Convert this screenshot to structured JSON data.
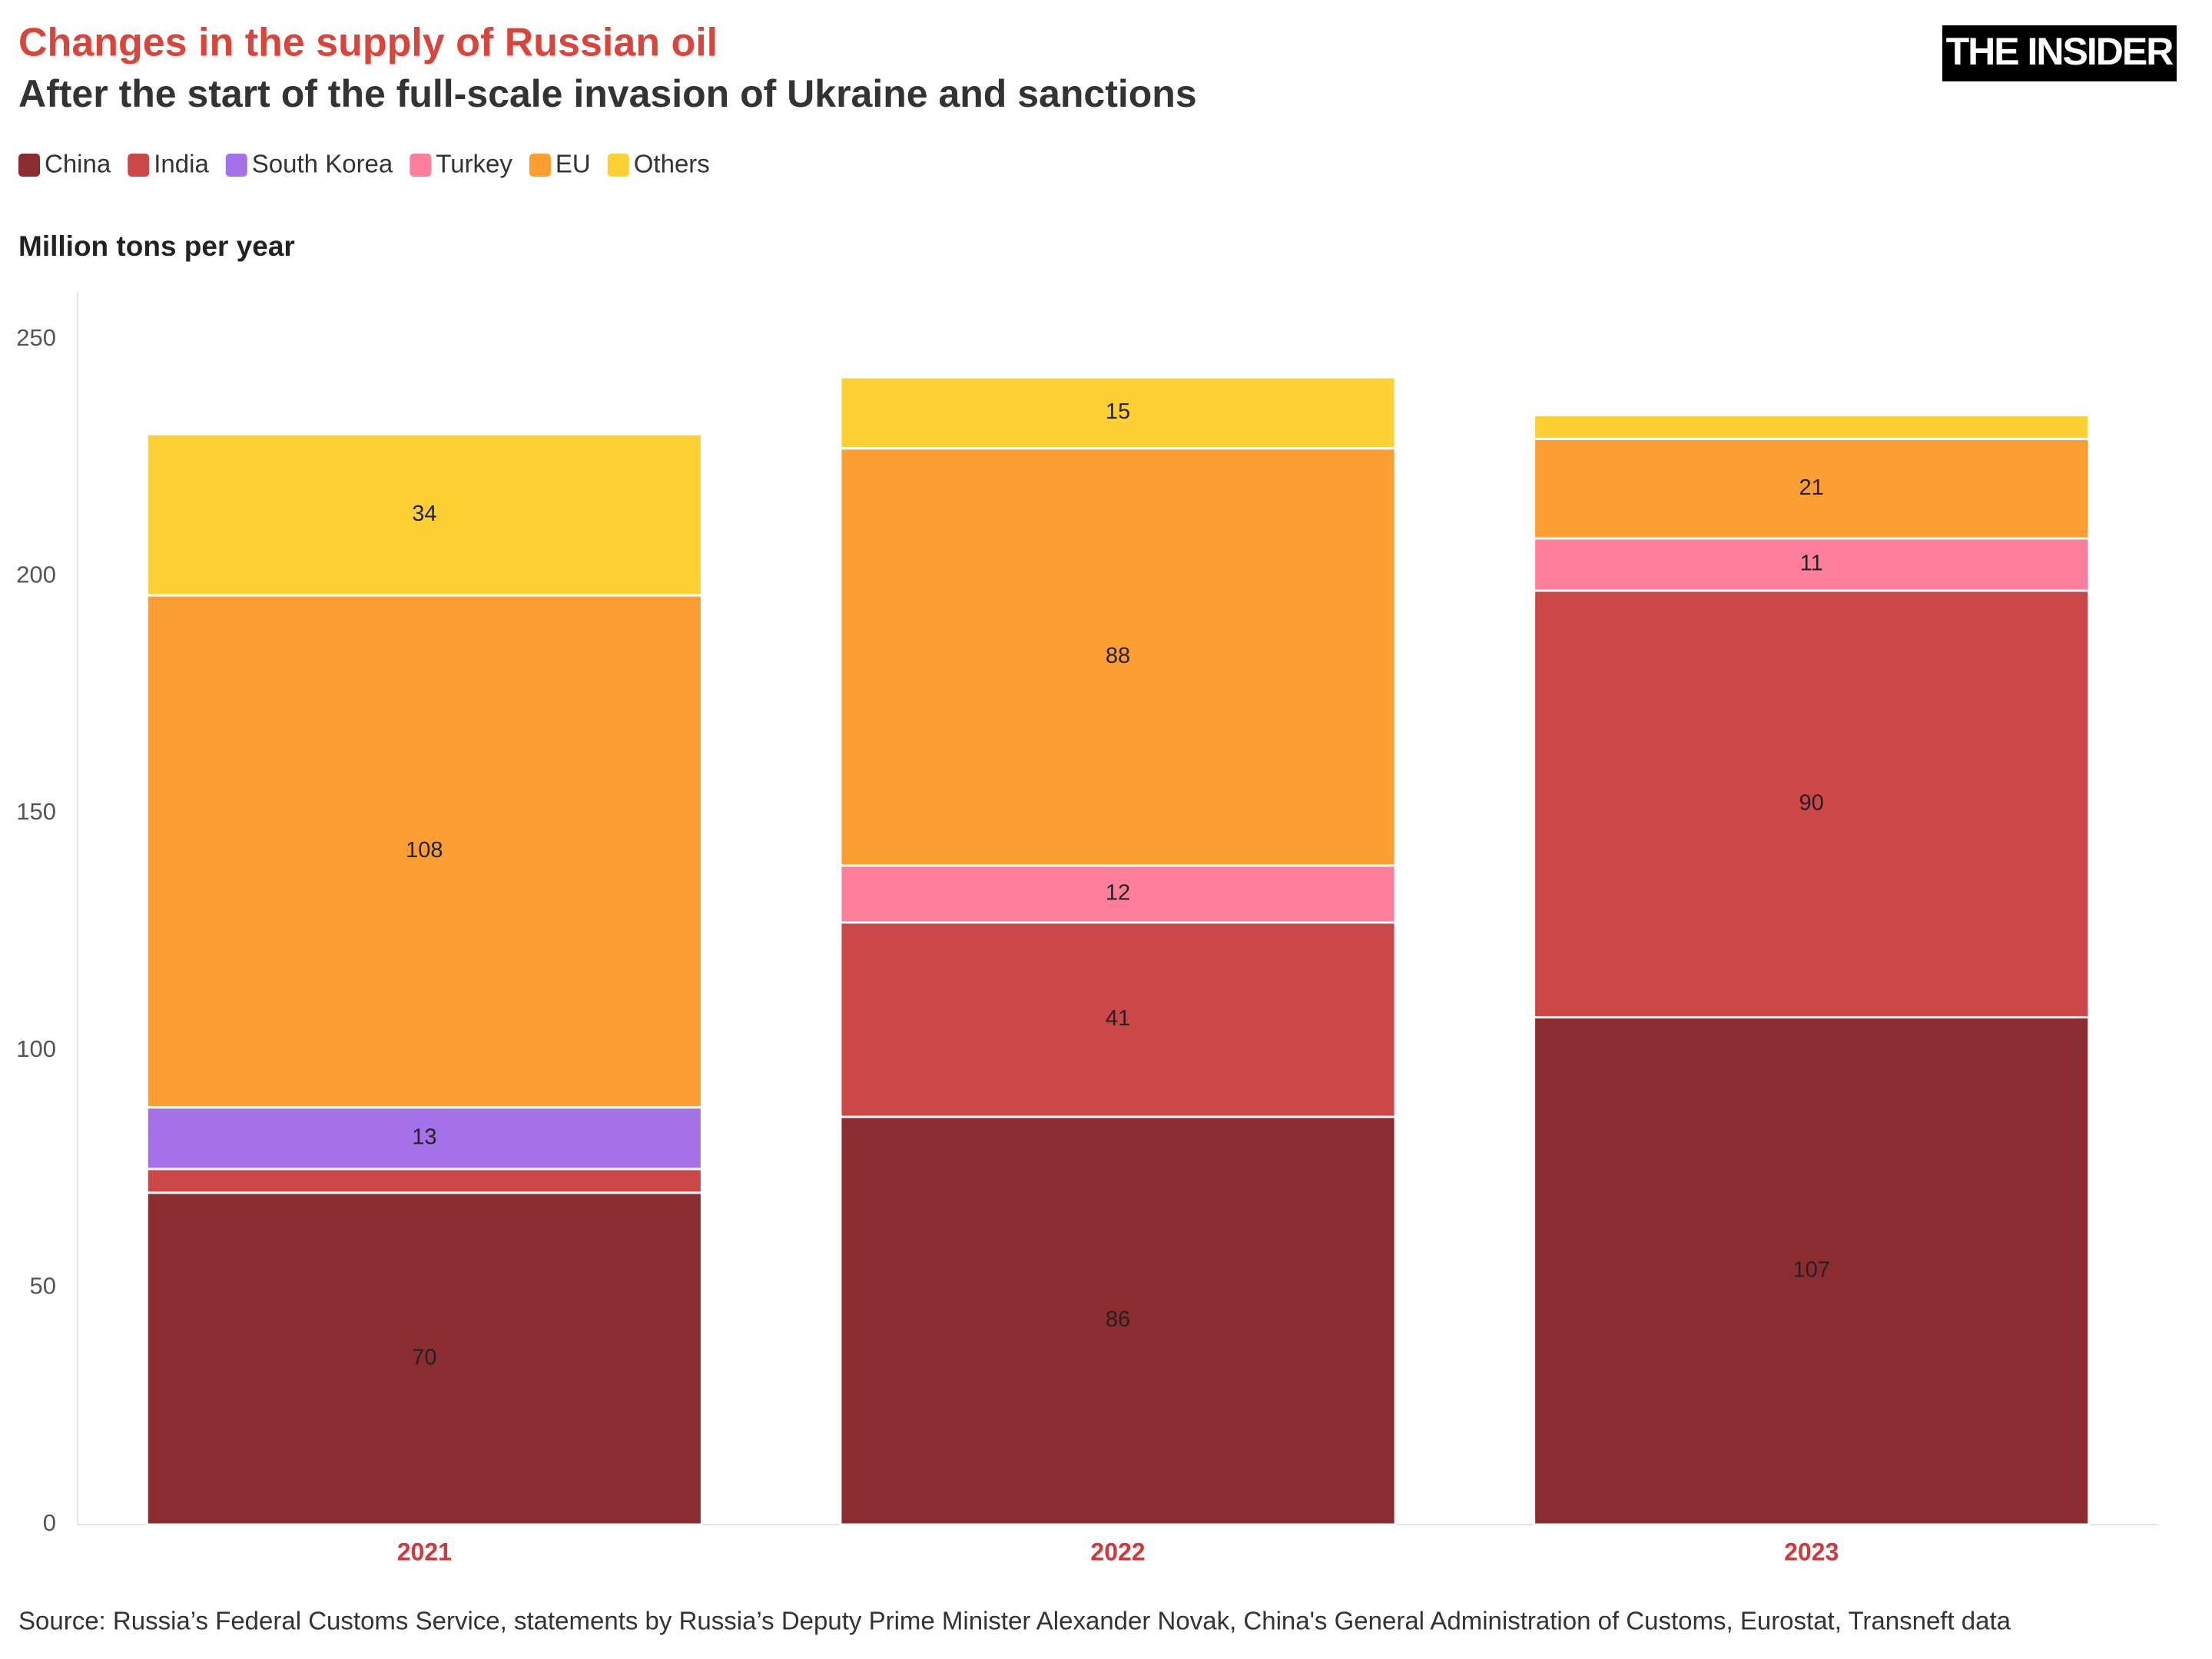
{
  "chart_data": {
    "type": "stacked_bar",
    "title": "Changes in the supply of Russian oil",
    "subtitle": "After the start of the full-scale invasion of Ukraine and sanctions",
    "y_axis_title": "Million tons per year",
    "source": "Source: Russia’s Federal Customs Service, statements by Russia’s Deputy Prime Minister Alexander Novak, China's General Administration of Customs, Eurostat, Transneft data",
    "logo": "THE INSIDER",
    "categories": [
      "2021",
      "2022",
      "2023"
    ],
    "series": [
      {
        "name": "China",
        "color": "#8b2c30",
        "values": [
          70,
          86,
          107
        ]
      },
      {
        "name": "India",
        "color": "#cc4748",
        "values": [
          5,
          41,
          90
        ]
      },
      {
        "name": "South Korea",
        "color": "#a571e8",
        "values": [
          13,
          null,
          null
        ]
      },
      {
        "name": "Turkey",
        "color": "#fe7f9b",
        "values": [
          null,
          12,
          11
        ]
      },
      {
        "name": "EU",
        "color": "#fd9e32",
        "values": [
          108,
          88,
          21
        ]
      },
      {
        "name": "Others",
        "color": "#fdd033",
        "values": [
          34,
          15,
          5
        ]
      }
    ],
    "ylim": [
      0,
      260
    ],
    "yticks": [
      0,
      50,
      100,
      150,
      200,
      250
    ],
    "grid": false
  }
}
